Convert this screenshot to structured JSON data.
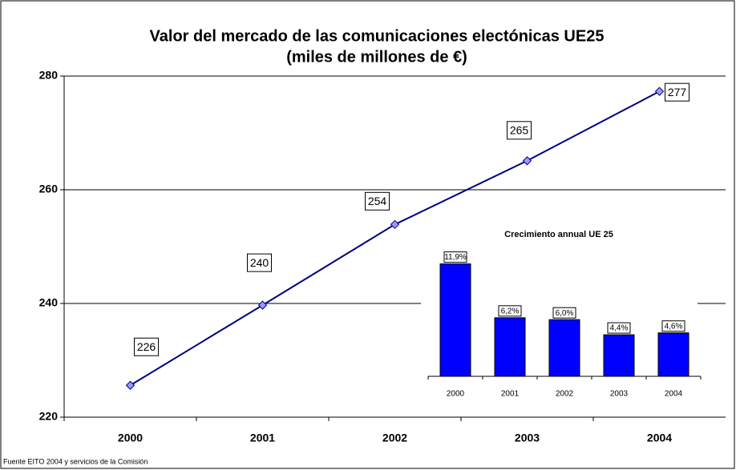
{
  "chart_data": [
    {
      "type": "line",
      "title": "Valor del mercado de las comunicaciones electónicas UE25",
      "subtitle": "(miles de millones de €)",
      "categories": [
        "2000",
        "2001",
        "2002",
        "2003",
        "2004"
      ],
      "values": [
        225.6,
        239.7,
        253.9,
        265.1,
        277.3
      ],
      "value_labels": [
        "226",
        "240",
        "254",
        "265",
        "277"
      ],
      "color": "#000080",
      "marker_color": "#9999ff",
      "ylim": [
        220,
        280
      ],
      "yticks": [
        220,
        240,
        260,
        280
      ],
      "grid": true,
      "source": "Fuente EITO 2004 y servicios de la Comisión"
    },
    {
      "type": "bar",
      "title": "Crecimiento annual UE 25",
      "categories": [
        "2000",
        "2001",
        "2002",
        "2003",
        "2004"
      ],
      "values": [
        11.9,
        6.2,
        6.0,
        4.4,
        4.6
      ],
      "value_labels": [
        "11,9%",
        "6,2%",
        "6,0%",
        "4,4%",
        "4,6%"
      ],
      "color": "#0000ff"
    }
  ]
}
